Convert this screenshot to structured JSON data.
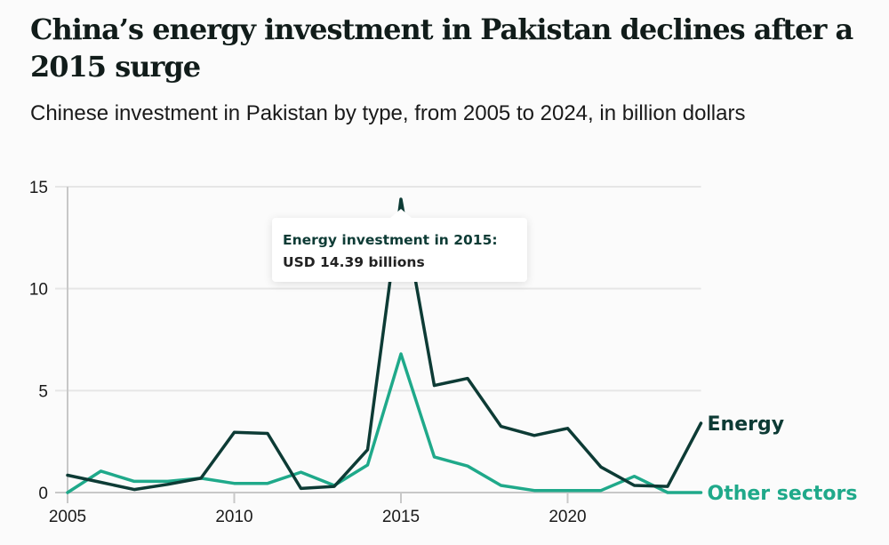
{
  "header": {
    "title": "China’s energy investment in Pakistan declines after a 2015 surge",
    "subtitle": "Chinese investment in Pakistan by type, from 2005 to 2024, in billion dollars"
  },
  "tooltip": {
    "line1": "Energy investment in 2015:",
    "line2": "USD 14.39 billions"
  },
  "chart_data": {
    "type": "line",
    "title": "China’s energy investment in Pakistan declines after a 2015 surge",
    "subtitle": "Chinese investment in Pakistan by type, from 2005 to 2024, in billion dollars",
    "xlabel": "",
    "ylabel": "",
    "x": [
      2005,
      2006,
      2007,
      2008,
      2009,
      2010,
      2011,
      2012,
      2013,
      2014,
      2015,
      2016,
      2017,
      2018,
      2019,
      2020,
      2021,
      2022,
      2023,
      2024
    ],
    "xlim": [
      2005,
      2024
    ],
    "ylim": [
      0,
      15
    ],
    "x_ticks": [
      "2005",
      "2010",
      "2015",
      "2020"
    ],
    "y_ticks": [
      "0",
      "5",
      "10",
      "15"
    ],
    "grid": true,
    "legend": "inline-right",
    "series": [
      {
        "name": "Energy",
        "color": "#0d3b35",
        "values": [
          0.85,
          0.5,
          0.15,
          0.4,
          0.7,
          2.95,
          2.9,
          0.2,
          0.3,
          2.1,
          14.39,
          5.25,
          5.6,
          3.25,
          2.8,
          3.15,
          1.25,
          0.35,
          0.3,
          3.4
        ]
      },
      {
        "name": "Other sectors",
        "color": "#1fa98a",
        "values": [
          0.0,
          1.05,
          0.55,
          0.55,
          0.7,
          0.45,
          0.45,
          1.0,
          0.35,
          1.35,
          6.8,
          1.75,
          1.3,
          0.35,
          0.1,
          0.1,
          0.1,
          0.8,
          0.0,
          0.0
        ]
      }
    ],
    "annotations": [
      "Energy investment in 2015: USD 14.39 billions"
    ]
  }
}
